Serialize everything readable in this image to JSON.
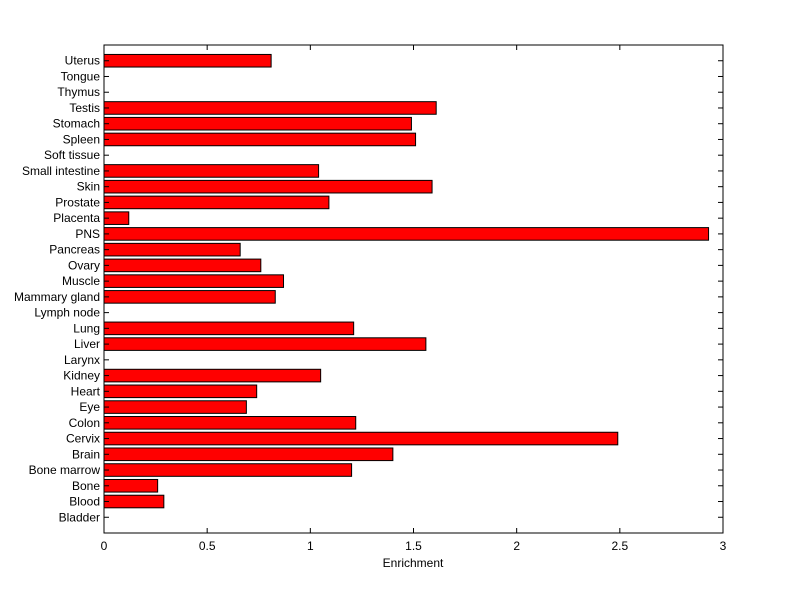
{
  "chart_data": {
    "type": "bar",
    "orientation": "horizontal",
    "title": "",
    "xlabel": "Enrichment",
    "ylabel": "",
    "xlim": [
      0,
      3
    ],
    "xticks": [
      0,
      0.5,
      1,
      1.5,
      2,
      2.5,
      3
    ],
    "xtick_labels": [
      "0",
      "0.5",
      "1",
      "1.5",
      "2",
      "2.5",
      "3"
    ],
    "grid": false,
    "legend": "none",
    "bar_color": "#ff0000",
    "bar_edge_color": "#000000",
    "categories": [
      "Bladder",
      "Blood",
      "Bone",
      "Bone marrow",
      "Brain",
      "Cervix",
      "Colon",
      "Eye",
      "Heart",
      "Kidney",
      "Larynx",
      "Liver",
      "Lung",
      "Lymph node",
      "Mammary gland",
      "Muscle",
      "Ovary",
      "Pancreas",
      "PNS",
      "Placenta",
      "Prostate",
      "Skin",
      "Small intestine",
      "Soft tissue",
      "Spleen",
      "Stomach",
      "Testis",
      "Thymus",
      "Tongue",
      "Uterus"
    ],
    "values": [
      0,
      0.29,
      0.26,
      1.2,
      1.4,
      2.49,
      1.22,
      0.69,
      0.74,
      1.05,
      0,
      1.56,
      1.21,
      0,
      0.83,
      0.87,
      0.76,
      0.66,
      2.93,
      0.12,
      1.09,
      1.59,
      1.04,
      0,
      1.51,
      1.49,
      1.61,
      0,
      0,
      0.81
    ]
  }
}
